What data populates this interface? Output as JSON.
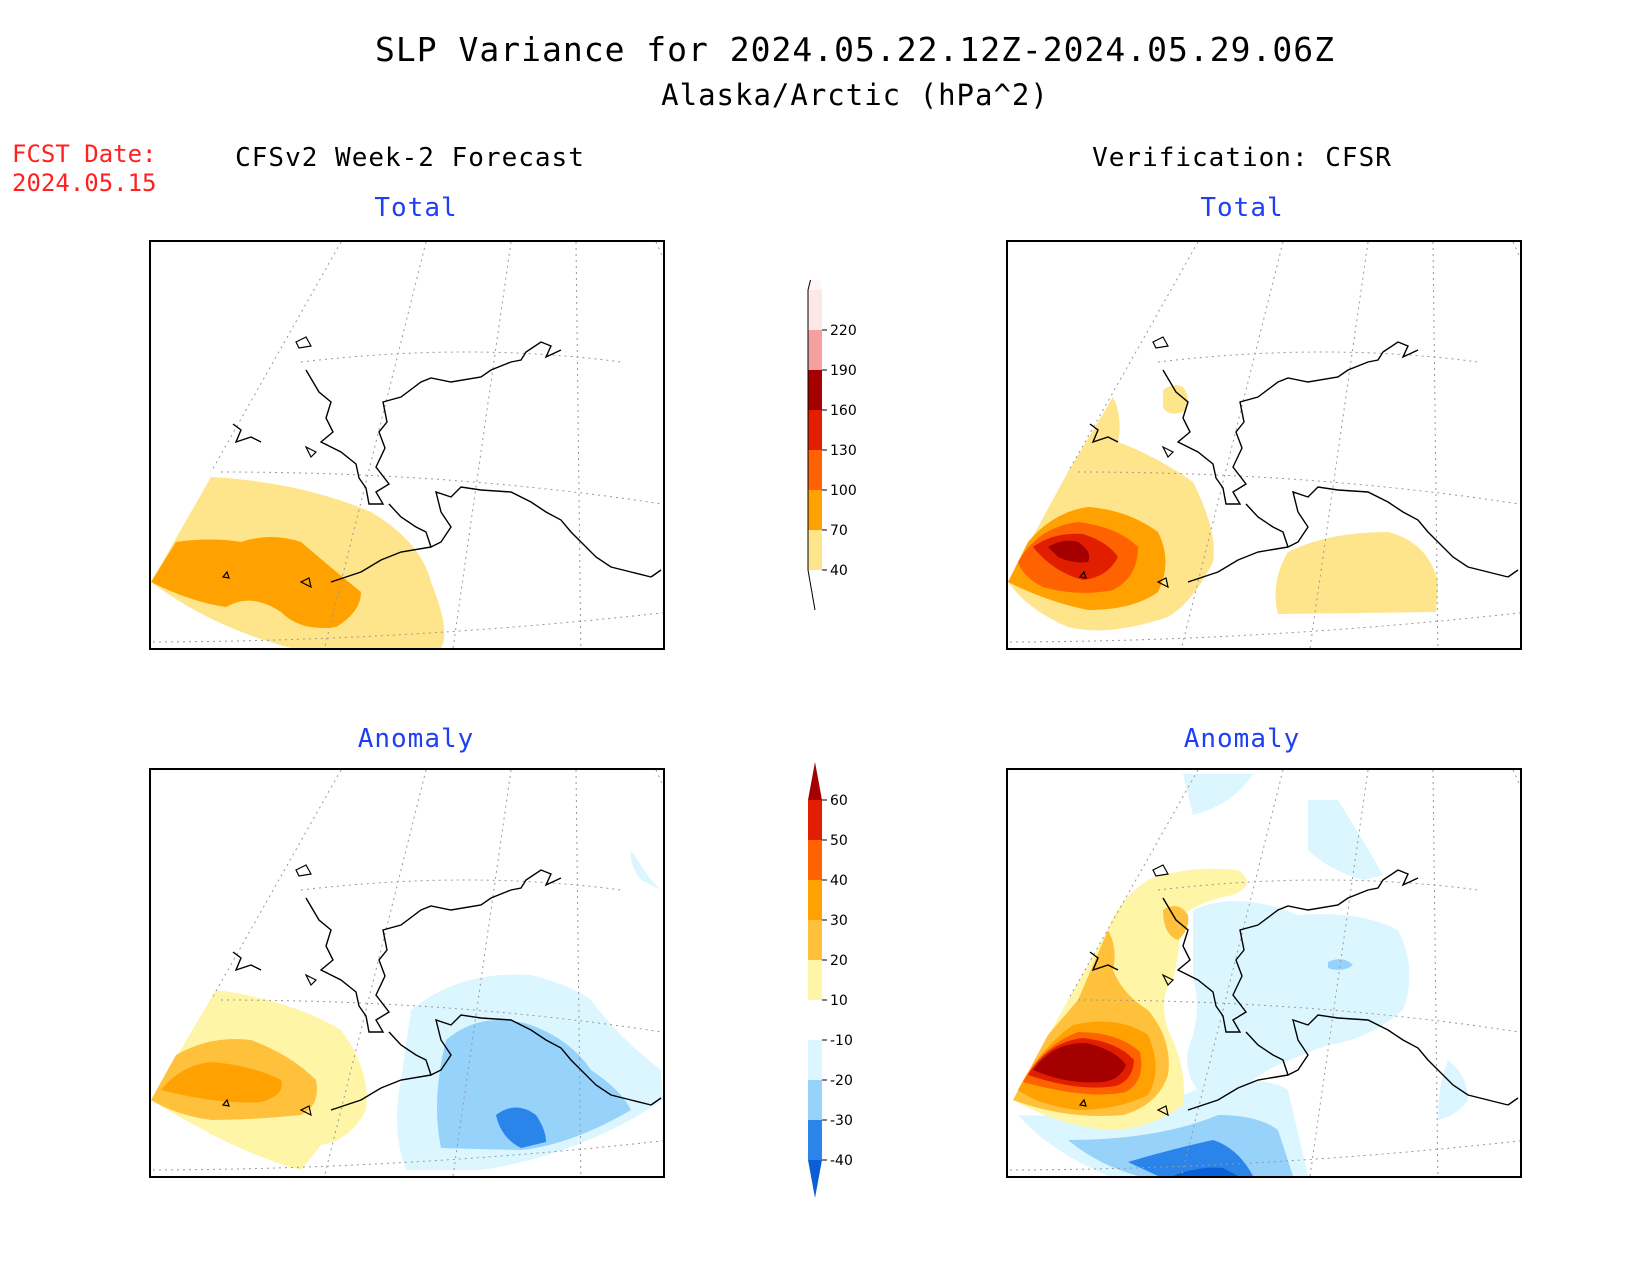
{
  "title": {
    "line1": "SLP Variance for 2024.05.22.12Z-2024.05.29.06Z",
    "line2": "Alaska/Arctic (hPa^2)"
  },
  "fcst": {
    "line1": "FCST Date:",
    "line2": "2024.05.15"
  },
  "columns": {
    "left": "CFSv2 Week-2 Forecast",
    "right": "Verification: CFSR"
  },
  "panels": {
    "forecast_total": "Total",
    "forecast_anomaly": "Anomaly",
    "verification_total": "Total",
    "verification_anomaly": "Anomaly"
  },
  "colorbar_total": {
    "labels": [
      "40",
      "70",
      "100",
      "130",
      "160",
      "190",
      "220"
    ],
    "colors": [
      "#fee48a",
      "#ffa100",
      "#ff6200",
      "#e11e00",
      "#a50000",
      "#f4a0a0",
      "#fde8e8"
    ]
  },
  "colorbar_anomaly": {
    "labels": [
      "-40",
      "-30",
      "-20",
      "-10",
      "10",
      "20",
      "30",
      "40",
      "50",
      "60"
    ],
    "colors": [
      "#0b5fd6",
      "#2b84ea",
      "#96d2fa",
      "#dcf6ff",
      "#ffffff",
      "#fff5a6",
      "#ffc03c",
      "#ffa100",
      "#ff6200",
      "#e11e00",
      "#a50000"
    ]
  }
}
